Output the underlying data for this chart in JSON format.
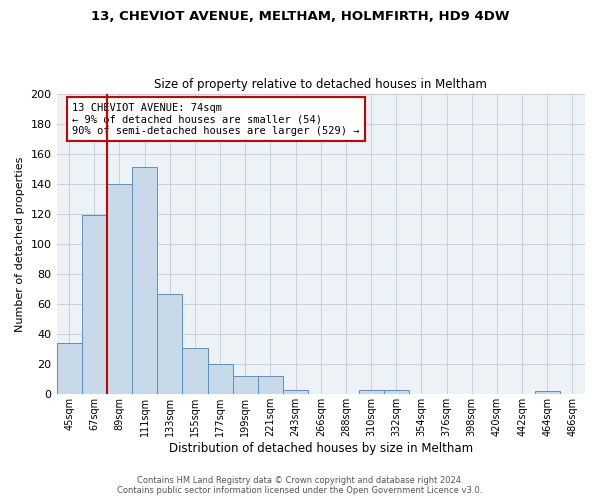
{
  "title1": "13, CHEVIOT AVENUE, MELTHAM, HOLMFIRTH, HD9 4DW",
  "title2": "Size of property relative to detached houses in Meltham",
  "xlabel": "Distribution of detached houses by size in Meltham",
  "ylabel": "Number of detached properties",
  "bin_labels": [
    "45sqm",
    "67sqm",
    "89sqm",
    "111sqm",
    "133sqm",
    "155sqm",
    "177sqm",
    "199sqm",
    "221sqm",
    "243sqm",
    "266sqm",
    "288sqm",
    "310sqm",
    "332sqm",
    "354sqm",
    "376sqm",
    "398sqm",
    "420sqm",
    "442sqm",
    "464sqm",
    "486sqm"
  ],
  "bar_heights": [
    34,
    119,
    140,
    151,
    67,
    31,
    20,
    12,
    12,
    3,
    0,
    0,
    3,
    3,
    0,
    0,
    0,
    0,
    0,
    2,
    0
  ],
  "bar_color": "#c8d9ea",
  "bar_edgecolor": "#5a8fc0",
  "vline_color": "#cc0000",
  "vline_pos": 1.5,
  "ylim": [
    0,
    200
  ],
  "yticks": [
    0,
    20,
    40,
    60,
    80,
    100,
    120,
    140,
    160,
    180,
    200
  ],
  "annotation_title": "13 CHEVIOT AVENUE: 74sqm",
  "annotation_line1": "← 9% of detached houses are smaller (54)",
  "annotation_line2": "90% of semi-detached houses are larger (529) →",
  "annotation_box_edgecolor": "#cc0000",
  "footer1": "Contains HM Land Registry data © Crown copyright and database right 2024.",
  "footer2": "Contains public sector information licensed under the Open Government Licence v3.0.",
  "bg_color": "#edf2f7",
  "grid_color": "#c0ccda"
}
